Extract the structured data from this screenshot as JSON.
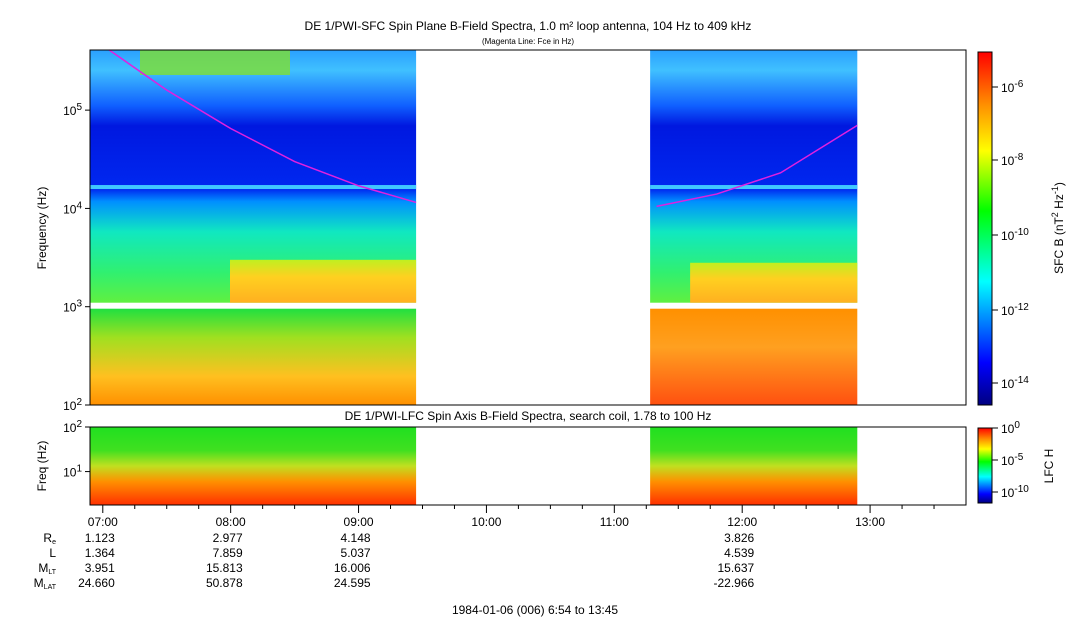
{
  "chart_data": [
    {
      "type": "heatmap",
      "title": "DE 1/PWI-SFC  Spin Plane B-Field Spectra, 1.0 m² loop antenna, 104 Hz to 409 kHz",
      "subtitle": "(Magenta Line: Fce in Hz)",
      "ylabel": "Frequency (Hz)",
      "yscale": "log",
      "ylim": [
        100,
        409000
      ],
      "yticks": [
        {
          "label": "10",
          "exp": "2",
          "v": 2
        },
        {
          "label": "10",
          "exp": "3",
          "v": 3
        },
        {
          "label": "10",
          "exp": "4",
          "v": 4
        },
        {
          "label": "10",
          "exp": "5",
          "v": 5
        }
      ],
      "data_intervals_hours": [
        [
          6.9,
          9.45
        ],
        [
          11.28,
          12.9
        ]
      ],
      "fce_line": [
        {
          "t": 7.05,
          "f": 409000
        },
        {
          "t": 7.5,
          "f": 160000
        },
        {
          "t": 8.0,
          "f": 65000
        },
        {
          "t": 8.5,
          "f": 30000
        },
        {
          "t": 9.0,
          "f": 17000
        },
        {
          "t": 9.45,
          "f": 11500
        },
        {
          "t": 11.33,
          "f": 10500
        },
        {
          "t": 11.8,
          "f": 14000
        },
        {
          "t": 12.3,
          "f": 23000
        },
        {
          "t": 12.9,
          "f": 70000
        }
      ],
      "colorbar": {
        "label": "SFC B (nT² Hz⁻¹)",
        "label_main": "SFC B (nT",
        "label_2": "2",
        "label_hz": " Hz",
        "label_m1": "-1",
        "label_close": ")",
        "ticks": [
          {
            "b": "10",
            "e": "-6"
          },
          {
            "b": "10",
            "e": "-8"
          },
          {
            "b": "10",
            "e": "-10"
          },
          {
            "b": "10",
            "e": "-12"
          },
          {
            "b": "10",
            "e": "-14"
          }
        ],
        "range_exp": [
          -15,
          -5
        ]
      }
    },
    {
      "type": "heatmap",
      "title": "DE 1/PWI-LFC  Spin Axis B-Field Spectra, search coil, 1.78 to 100 Hz",
      "ylabel": "Freq (Hz)",
      "yscale": "log",
      "ylim": [
        1.78,
        100
      ],
      "yticks": [
        {
          "label": "10",
          "exp": "1"
        },
        {
          "label": "10",
          "exp": "2"
        }
      ],
      "colorbar": {
        "label": "LFC H",
        "ticks": [
          {
            "b": "10",
            "e": "0"
          },
          {
            "b": "10",
            "e": "-5"
          },
          {
            "b": "10",
            "e": "-10"
          }
        ]
      }
    }
  ],
  "xaxis": {
    "ticks": [
      "07:00",
      "08:00",
      "09:00",
      "10:00",
      "11:00",
      "12:00",
      "13:00"
    ],
    "start_hours": 6.9,
    "end_hours": 13.75
  },
  "ephemeris": {
    "rows": [
      {
        "label": "R",
        "sub": "e",
        "values": [
          "1.123",
          "2.977",
          "4.148",
          "",
          "",
          "3.826"
        ]
      },
      {
        "label": "L",
        "sub": "",
        "values": [
          "1.364",
          "7.859",
          "5.037",
          "",
          "",
          "4.539"
        ]
      },
      {
        "label": "M",
        "sub": "LT",
        "values": [
          "3.951",
          "15.813",
          "16.006",
          "",
          "",
          "15.637"
        ]
      },
      {
        "label": "M",
        "sub": "LAT",
        "values": [
          "24.660",
          "50.878",
          "24.595",
          "",
          "",
          "-22.966"
        ]
      }
    ]
  },
  "footer": "1984-01-06 (006) 6:54 to 13:45",
  "colors": {
    "fce": "#e020e0"
  }
}
